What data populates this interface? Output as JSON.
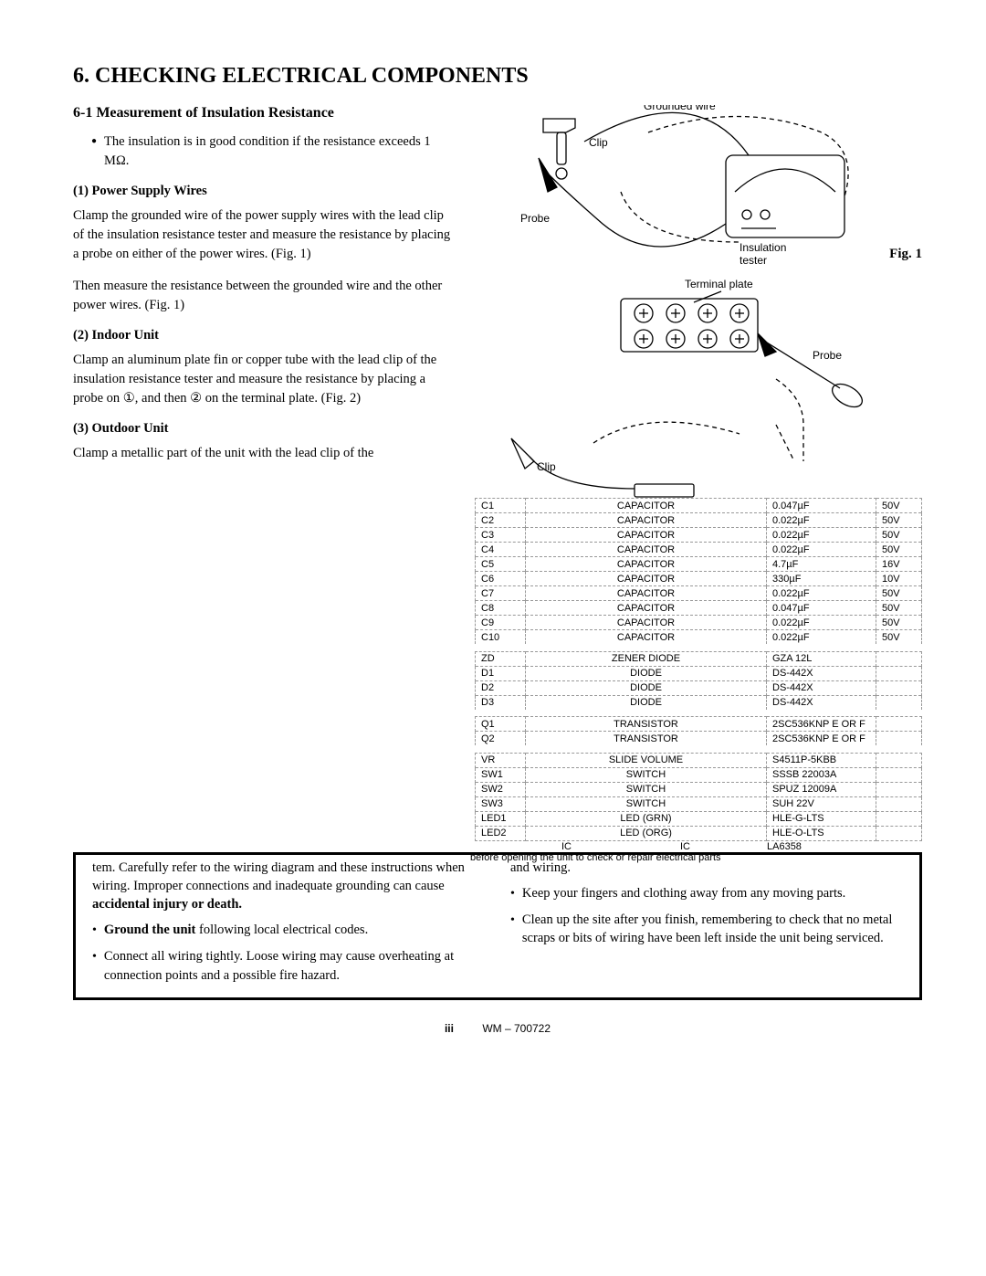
{
  "title": "6. CHECKING ELECTRICAL COMPONENTS",
  "section61_title": "6-1  Measurement of Insulation Resistance",
  "intro_bullet": "The insulation is in good condition if the resistance exceeds 1 MΩ.",
  "h1": "(1)  Power Supply Wires",
  "p1a": "Clamp the grounded wire of the power supply wires with the lead clip of the insulation resistance tester and measure the resistance by placing a probe on either of the power wires. (Fig. 1)",
  "p1b": "Then measure the resistance between the grounded wire and the other power wires. (Fig. 1)",
  "h2": "(2)  Indoor Unit",
  "p2": "Clamp an aluminum plate fin or copper tube with the lead clip of the insulation resistance tester and measure the resistance by placing a probe on ①, and then ② on the terminal plate. (Fig. 2)",
  "h3": "(3)  Outdoor Unit",
  "p3": "Clamp a metallic part of the unit with the lead clip of the",
  "fig1_label": "Fig. 1",
  "fig1": {
    "grounded_wire": "Grounded wire",
    "clip": "Clip",
    "probe": "Probe",
    "insulation_tester": "Insulation\ntester",
    "terminal_plate": "Terminal plate"
  },
  "fig2": {
    "clip": "Clip",
    "probe": "Probe"
  },
  "frag_before": "before opening the unit to check or repair electrical parts",
  "frag_ic1": "IC",
  "frag_ic2": "IC",
  "frag_la": "LA6358",
  "table": {
    "rows": [
      [
        "C1",
        "CAPACITOR",
        "0.047µF",
        "50V"
      ],
      [
        "C2",
        "CAPACITOR",
        "0.022µF",
        "50V"
      ],
      [
        "C3",
        "CAPACITOR",
        "0.022µF",
        "50V"
      ],
      [
        "C4",
        "CAPACITOR",
        "0.022µF",
        "50V"
      ],
      [
        "C5",
        "CAPACITOR",
        "4.7µF",
        "16V"
      ],
      [
        "C6",
        "CAPACITOR",
        "330µF",
        "10V"
      ],
      [
        "C7",
        "CAPACITOR",
        "0.022µF",
        "50V"
      ],
      [
        "C8",
        "CAPACITOR",
        "0.047µF",
        "50V"
      ],
      [
        "C9",
        "CAPACITOR",
        "0.022µF",
        "50V"
      ],
      [
        "C10",
        "CAPACITOR",
        "0.022µF",
        "50V"
      ]
    ],
    "rows2": [
      [
        "ZD",
        "ZENER DIODE",
        "GZA 12L",
        ""
      ],
      [
        "D1",
        "DIODE",
        "DS-442X",
        ""
      ],
      [
        "D2",
        "DIODE",
        "DS-442X",
        ""
      ],
      [
        "D3",
        "DIODE",
        "DS-442X",
        ""
      ]
    ],
    "rows3": [
      [
        "Q1",
        "TRANSISTOR",
        "2SC536KNP E OR F",
        ""
      ],
      [
        "Q2",
        "TRANSISTOR",
        "2SC536KNP E OR F",
        ""
      ]
    ],
    "rows4": [
      [
        "VR",
        "SLIDE VOLUME",
        "S4511P-5KBB",
        ""
      ],
      [
        "SW1",
        "SWITCH",
        "SSSB 22003A",
        ""
      ],
      [
        "SW2",
        "SWITCH",
        "SPUZ 12009A",
        ""
      ],
      [
        "SW3",
        "SWITCH",
        "SUH 22V",
        ""
      ],
      [
        "LED1",
        "LED (GRN)",
        "HLE-G-LTS",
        ""
      ],
      [
        "LED2",
        "LED (ORG)",
        "HLE-O-LTS",
        ""
      ]
    ]
  },
  "safety": {
    "left1": "tem. Carefully refer to the wiring diagram and these instructions when wiring. Improper connections and inadequate grounding can cause ",
    "left1b": "accidental injury or death.",
    "left2_pre": "Ground the unit",
    "left2_post": " following local electrical codes.",
    "left3": "Connect all wiring tightly. Loose wiring may cause overheating at connection points and a possible fire hazard.",
    "right1": "and wiring.",
    "right2": "Keep your fingers and clothing away from any moving parts.",
    "right3": "Clean up the site after you finish, remembering to check that no metal scraps or bits of wiring have been left inside the unit being serviced."
  },
  "footer_pg": "iii",
  "footer_code": "WM – 700722"
}
